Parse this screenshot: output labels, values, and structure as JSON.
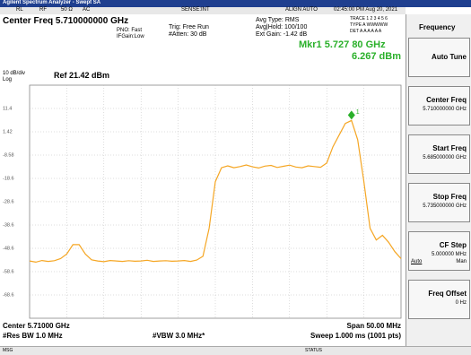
{
  "header": {
    "app_title": "Agilent Spectrum Analyzer - Swept SA",
    "rl": "RL",
    "rf": "RF",
    "impedance": "50 Ω",
    "coupling": "AC",
    "sense": "SENSE:INT",
    "align": "ALIGN AUTO",
    "datetime": "02:45:00 PM Aug 20, 2021",
    "center_freq": "Center Freq 5.710000000 GHz",
    "pno": "PNO: Fast",
    "ifgain": "IFGain:Low",
    "trig": "Trig: Free Run",
    "atten": "#Atten: 30 dB",
    "avg_type": "Avg Type: RMS",
    "avg_hold": "Avg|Hold: 100/100",
    "ext_gain": "Ext Gain: -1.42 dB",
    "trace_row": "TRACE 1 2 3 4 5 6",
    "type_row": "TYPE A WWWWW",
    "det_row": "DET A A A A A A"
  },
  "marker": {
    "freq": "Mkr1 5.727 80 GHz",
    "amplitude": "6.267 dBm",
    "label": "1"
  },
  "display": {
    "scale": "10 dB/div",
    "log": "Log",
    "ref": "Ref 21.42 dBm"
  },
  "trace": {
    "color": "#f5a623",
    "ylim": [
      -78.58,
      21.42
    ],
    "yticks": [
      {
        "value": 11.42,
        "label": "11.4"
      },
      1.42,
      -8.58,
      {
        "value": -18.58,
        "label": "-18.6"
      },
      {
        "value": -28.58,
        "label": "-28.6"
      },
      {
        "value": -38.58,
        "label": "-38.6"
      },
      {
        "value": -48.58,
        "label": "-48.6"
      },
      {
        "value": -58.58,
        "label": "-58.6"
      },
      {
        "value": -68.58,
        "label": "-68.6"
      }
    ],
    "values": [
      -54,
      -54.5,
      -53.8,
      -54.2,
      -53.9,
      -53,
      -51,
      -47,
      -47,
      -51,
      -53.5,
      -54,
      -54.3,
      -53.8,
      -54,
      -54.2,
      -53.9,
      -54.1,
      -54,
      -53.7,
      -54.2,
      -54,
      -53.9,
      -54.1,
      -54,
      -53.8,
      -54.2,
      -53.6,
      -52,
      -40,
      -20,
      -14,
      -13.2,
      -14,
      -13.5,
      -12.8,
      -13.6,
      -14.1,
      -13.3,
      -13,
      -13.9,
      -13.4,
      -12.9,
      -13.7,
      -14,
      -13.2,
      -13.5,
      -13.8,
      -12,
      -5,
      0,
      5,
      6.267,
      -2,
      -20,
      -40,
      -45,
      -43,
      -46,
      -50,
      -53
    ]
  },
  "footer": {
    "center": "Center 5.71000 GHz",
    "rbw": "#Res BW 1.0 MHz",
    "vbw": "#VBW 3.0 MHz*",
    "span": "Span 50.00 MHz",
    "sweep": "Sweep 1.000 ms (1001 pts)",
    "msg": "MSG",
    "status": "STATUS"
  },
  "softkeys": {
    "menu": "Frequency",
    "keys": [
      {
        "label": "Auto Tune"
      },
      {
        "label": "Center Freq",
        "value": "5.710000000 GHz"
      },
      {
        "label": "Start Freq",
        "value": "5.685000000 GHz"
      },
      {
        "label": "Stop Freq",
        "value": "5.735000000 GHz"
      },
      {
        "label": "CF Step",
        "value": "5.000000 MHz",
        "auto": "Auto",
        "man": "Man"
      },
      {
        "label": "Freq Offset",
        "value": "0 Hz"
      }
    ]
  }
}
